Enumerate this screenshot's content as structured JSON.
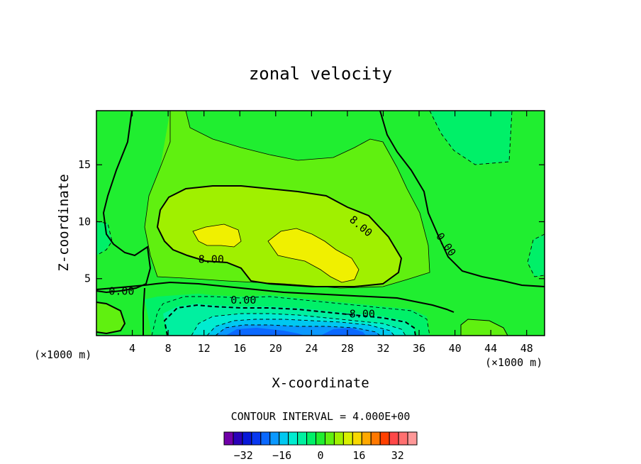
{
  "chart_data": {
    "type": "contour",
    "title": "zonal velocity",
    "xlabel": "X-coordinate",
    "ylabel": "Z-coordinate",
    "x_unit": "(×1000 m)",
    "y_unit": "(×1000 m)",
    "xlim": [
      0,
      50
    ],
    "ylim": [
      0,
      19.75
    ],
    "x_ticks": [
      4,
      8,
      12,
      16,
      20,
      24,
      28,
      32,
      36,
      40,
      44,
      48
    ],
    "y_ticks": [
      5,
      10,
      15
    ],
    "contour_interval_text": "CONTOUR INTERVAL = 4.000E+00",
    "contour_labels": [
      {
        "text": "8.00",
        "x": 29.5,
        "y": 9.6,
        "angle": 40
      },
      {
        "text": "0.00",
        "x": 39.0,
        "y": 8.0,
        "angle": 55
      },
      {
        "text": "8.00",
        "x": 12.8,
        "y": 6.7,
        "angle": 0
      },
      {
        "text": "0.00",
        "x": 2.8,
        "y": 3.9,
        "angle": 0
      },
      {
        "text": "0.00",
        "x": 16.4,
        "y": 3.1,
        "angle": 0
      },
      {
        "text": "-8.00",
        "x": 29.3,
        "y": 1.9,
        "angle": 0
      }
    ],
    "colorbar": {
      "levels": [
        -40,
        -36,
        -32,
        -28,
        -24,
        -20,
        -16,
        -12,
        -8,
        -4,
        0,
        4,
        8,
        12,
        16,
        20,
        24,
        28,
        32,
        36,
        40
      ],
      "colors": [
        "#7000a8",
        "#2a00b8",
        "#0818d8",
        "#0838f0",
        "#0a68ff",
        "#0a98ff",
        "#00c8f0",
        "#00ecd0",
        "#00f0a0",
        "#00f068",
        "#20ee30",
        "#60f010",
        "#a0f000",
        "#d8f000",
        "#f8d800",
        "#ffa800",
        "#ff7800",
        "#ff4000",
        "#ff4848",
        "#ff7070",
        "#ff9898"
      ],
      "tick_labels": [
        "-32",
        "-16",
        "0",
        "16",
        "32"
      ],
      "tick_values": [
        -32,
        -16,
        0,
        16,
        32
      ]
    }
  }
}
